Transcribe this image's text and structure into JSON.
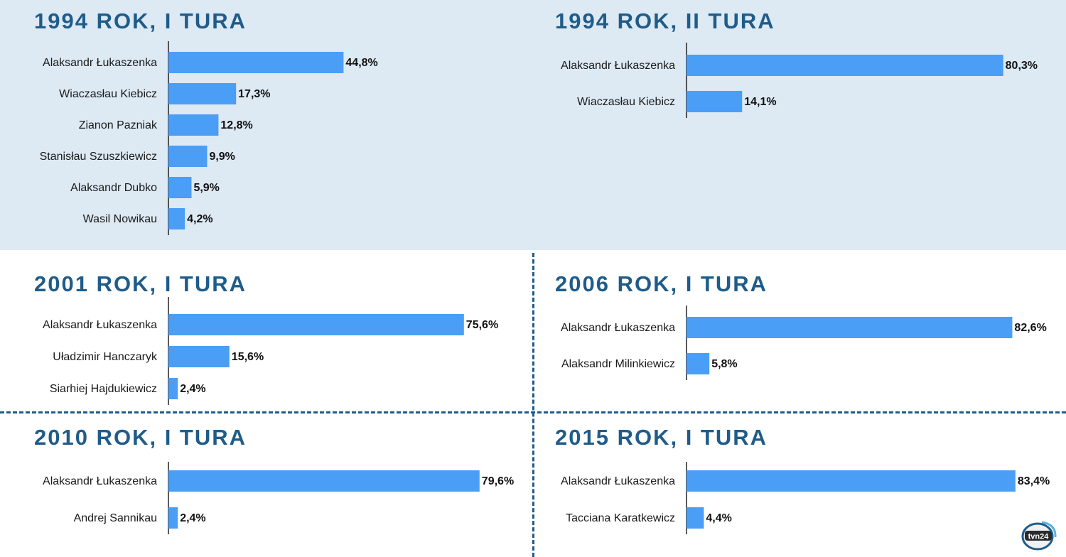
{
  "colors": {
    "bar": "#4a9ef5",
    "title": "#1f5c8a",
    "axis": "#222222",
    "top_band": "#dde9f3",
    "divider": "#1f5c8a"
  },
  "logo": {
    "text": "tvn24",
    "icon": "tvn24-logo-icon"
  },
  "chart_data": [
    {
      "type": "bar",
      "orientation": "horizontal",
      "title": "1994 ROK, I TURA",
      "categories": [
        "Alaksandr Łukaszenka",
        "Wiaczasłau Kiebicz",
        "Zianon Pazniak",
        "Stanisłau Szuszkiewicz",
        "Alaksandr Dubko",
        "Wasil Nowikau"
      ],
      "values": [
        44.8,
        17.3,
        12.8,
        9.9,
        5.9,
        4.2
      ],
      "value_labels": [
        "44,8%",
        "17,3%",
        "12,8%",
        "9,9%",
        "5,9%",
        "4,2%"
      ],
      "unit": "%",
      "xlim": [
        0,
        100
      ],
      "grid": false,
      "legend": "none"
    },
    {
      "type": "bar",
      "orientation": "horizontal",
      "title": "1994 ROK, II TURA",
      "categories": [
        "Alaksandr Łukaszenka",
        "Wiaczasłau Kiebicz"
      ],
      "values": [
        80.3,
        14.1
      ],
      "value_labels": [
        "80,3%",
        "14,1%"
      ],
      "unit": "%",
      "xlim": [
        0,
        100
      ],
      "grid": false,
      "legend": "none"
    },
    {
      "type": "bar",
      "orientation": "horizontal",
      "title": "2001 ROK, I TURA",
      "categories": [
        "Alaksandr Łukaszenka",
        "Uładzimir Hanczaryk",
        "Siarhiej Hajdukiewicz"
      ],
      "values": [
        75.6,
        15.6,
        2.4
      ],
      "value_labels": [
        "75,6%",
        "15,6%",
        "2,4%"
      ],
      "unit": "%",
      "xlim": [
        0,
        100
      ],
      "grid": false,
      "legend": "none"
    },
    {
      "type": "bar",
      "orientation": "horizontal",
      "title": "2006 ROK, I TURA",
      "categories": [
        "Alaksandr Łukaszenka",
        "Alaksandr Milinkiewicz"
      ],
      "values": [
        82.6,
        5.8
      ],
      "value_labels": [
        "82,6%",
        "5,8%"
      ],
      "unit": "%",
      "xlim": [
        0,
        100
      ],
      "grid": false,
      "legend": "none"
    },
    {
      "type": "bar",
      "orientation": "horizontal",
      "title": "2010 ROK, I TURA",
      "categories": [
        "Alaksandr Łukaszenka",
        "Andrej Sannikau"
      ],
      "values": [
        79.6,
        2.4
      ],
      "value_labels": [
        "79,6%",
        "2,4%"
      ],
      "unit": "%",
      "xlim": [
        0,
        100
      ],
      "grid": false,
      "legend": "none"
    },
    {
      "type": "bar",
      "orientation": "horizontal",
      "title": "2015 ROK, I TURA",
      "categories": [
        "Alaksandr Łukaszenka",
        "Tacciana Karatkewicz"
      ],
      "values": [
        83.4,
        4.4
      ],
      "value_labels": [
        "83,4%",
        "4,4%"
      ],
      "unit": "%",
      "xlim": [
        0,
        100
      ],
      "grid": false,
      "legend": "none"
    }
  ]
}
